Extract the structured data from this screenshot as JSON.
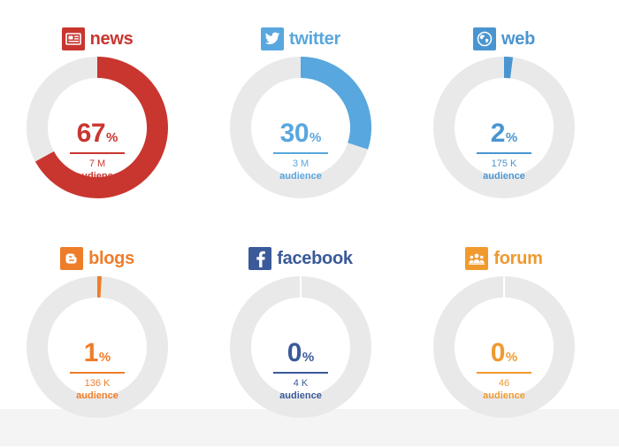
{
  "chart_data": {
    "type": "pie",
    "style": "donut",
    "series": [
      {
        "name": "news",
        "percent": 67,
        "audience_value": "7 M",
        "audience_label": "audience",
        "color": "#c9362f",
        "icon": "news-icon"
      },
      {
        "name": "twitter",
        "percent": 30,
        "audience_value": "3 M",
        "audience_label": "audience",
        "color": "#58a7de",
        "icon": "twitter-icon"
      },
      {
        "name": "web",
        "percent": 2,
        "audience_value": "175 K",
        "audience_label": "audience",
        "color": "#4a95d0",
        "icon": "globe-icon"
      },
      {
        "name": "blogs",
        "percent": 1,
        "audience_value": "136 K",
        "audience_label": "audience",
        "color": "#ee7d2a",
        "icon": "blogger-icon"
      },
      {
        "name": "facebook",
        "percent": 0,
        "audience_value": "4 K",
        "audience_label": "audience",
        "color": "#3a5a99",
        "icon": "facebook-icon"
      },
      {
        "name": "forum",
        "percent": 0,
        "audience_value": "46",
        "audience_label": "audience",
        "color": "#f09a2e",
        "icon": "forum-icon"
      }
    ],
    "percent_symbol": "%",
    "track_color": "#e9e9e9"
  }
}
